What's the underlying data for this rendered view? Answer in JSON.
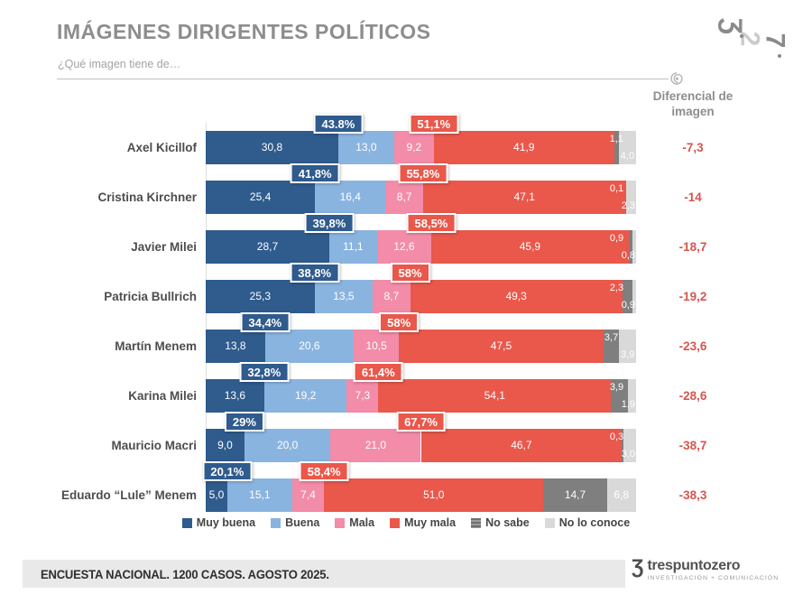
{
  "header": {
    "title": "IMÁGENES DIRIGENTES POLÍTICOS",
    "subtitle": "¿Qué imagen tiene de…"
  },
  "diff_header": "Diferencial de imagen",
  "footer": {
    "text": "ENCUESTA NACIONAL. 1200 CASOS. AGOSTO 2025."
  },
  "brand": {
    "name": "trespuntozero",
    "tagline": "INVESTIGACIÓN + COMUNICACIÓN"
  },
  "colors": {
    "muy_buena": "#2f5b8d",
    "buena": "#8ab4e0",
    "mala": "#f28ca8",
    "muy_mala": "#e9584b",
    "no_sabe": "#7f7f7f",
    "no_lo_conoce": "#d9d9d9",
    "differential_text": "#d5564e",
    "title_gray": "#8d8d8d"
  },
  "chart_data": {
    "type": "bar",
    "stacked": true,
    "orientation": "horizontal",
    "title": "IMÁGENES DIRIGENTES POLÍTICOS",
    "xlim": [
      0,
      100
    ],
    "grid": false,
    "legend_position": "bottom",
    "categories": [
      "Axel Kicillof",
      "Cristina Kirchner",
      "Javier Milei",
      "Patricia Bullrich",
      "Martín Menem",
      "Karina Milei",
      "Mauricio Macri",
      "Eduardo “Lule” Menem"
    ],
    "series": [
      {
        "key": "muy-buena",
        "name": "Muy buena",
        "color": "#2f5b8d",
        "values": [
          30.8,
          25.4,
          28.7,
          25.3,
          13.8,
          13.6,
          9.0,
          5.0
        ]
      },
      {
        "key": "buena",
        "name": "Buena",
        "color": "#8ab4e0",
        "values": [
          13.0,
          16.4,
          11.1,
          13.5,
          20.6,
          19.2,
          20.0,
          15.1
        ]
      },
      {
        "key": "mala",
        "name": "Mala",
        "color": "#f28ca8",
        "values": [
          9.2,
          8.7,
          12.6,
          8.7,
          10.5,
          7.3,
          21.0,
          7.4
        ]
      },
      {
        "key": "muy-mala",
        "name": "Muy mala",
        "color": "#e9584b",
        "values": [
          41.9,
          47.1,
          45.9,
          49.3,
          47.5,
          54.1,
          46.7,
          51.0
        ]
      },
      {
        "key": "no-sabe",
        "name": "No sabe",
        "color": "#7f7f7f",
        "values": [
          1.1,
          0.1,
          0.9,
          2.3,
          3.7,
          3.9,
          0.3,
          14.7
        ]
      },
      {
        "key": "no-lo-conoce",
        "name": "No lo conoce",
        "color": "#d9d9d9",
        "values": [
          4.0,
          2.3,
          0.8,
          0.9,
          3.9,
          1.9,
          3.0,
          6.8
        ]
      }
    ],
    "positive_labels": [
      "43.8%",
      "41,8%",
      "39,8%",
      "38,8%",
      "34,4%",
      "32,8%",
      "29%",
      "20,1%"
    ],
    "negative_labels": [
      "51,1%",
      "55,8%",
      "58,5%",
      "58%",
      "58%",
      "61,4%",
      "67,7%",
      "58,4%"
    ],
    "differentials": [
      "-7,3",
      "-14",
      "-18,7",
      "-19,2",
      "-23,6",
      "-28,6",
      "-38,7",
      "-38,3"
    ]
  }
}
